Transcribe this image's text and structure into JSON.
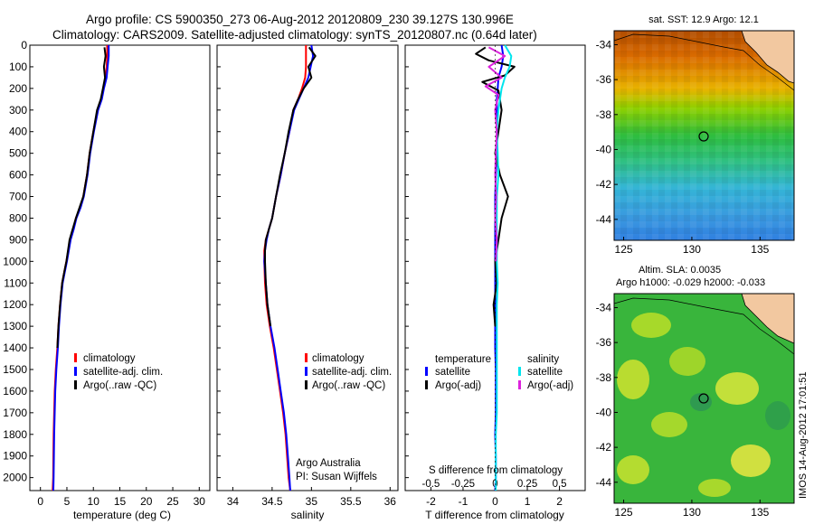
{
  "header": {
    "line1": "Argo profile: CS 5900350_273 06-Aug-2012 20120809_230 39.127S 130.996E",
    "line2": "Climatology: CARS2009. Satellite-adjusted climatology: synTS_20120807.nc (0.64d later)"
  },
  "colors": {
    "climatology": "#ff0000",
    "satellite": "#0000ff",
    "argo": "#000000",
    "sal_satellite": "#00e5ee",
    "sal_argo": "#dd22dd"
  },
  "depth_axis": {
    "ticks": [
      "0",
      "100",
      "200",
      "300",
      "400",
      "500",
      "600",
      "700",
      "800",
      "900",
      "1000",
      "1100",
      "1200",
      "1300",
      "1400",
      "1500",
      "1600",
      "1700",
      "1800",
      "1900",
      "2000"
    ],
    "range": [
      0,
      2060
    ]
  },
  "panel_temperature": {
    "xlabel": "temperature (deg C)",
    "xticks": [
      "0",
      "5",
      "10",
      "15",
      "20",
      "25",
      "30"
    ],
    "xlim": [
      -2,
      32
    ],
    "legend": [
      "climatology",
      "satellite-adj. clim.",
      "Argo(..raw -QC)"
    ]
  },
  "panel_salinity": {
    "xlabel": "salinity",
    "xticks": [
      "34",
      "34.5",
      "35",
      "35.5",
      "36"
    ],
    "xlim": [
      33.8,
      36.1
    ],
    "legend": [
      "climatology",
      "satellite-adj. clim.",
      "Argo(..raw -QC)"
    ],
    "credit1": "Argo Australia",
    "credit2": "PI: Susan Wijffels"
  },
  "panel_difference": {
    "xlabel": "T difference from climatology",
    "xlabel_top": "S difference from climatology",
    "xticks_bottom": [
      "-2",
      "-1",
      "0",
      "1",
      "2"
    ],
    "xticks_top": [
      "-0.5",
      "-0.25",
      "0",
      "0.25",
      "0.5"
    ],
    "xlim": [
      -2.8,
      2.8
    ],
    "legend_left_title": "temperature",
    "legend_left": [
      "satellite",
      "Argo(-adj)"
    ],
    "legend_right_title": "salinity",
    "legend_right": [
      "satellite",
      "Argo(-adj)"
    ]
  },
  "map_sst": {
    "title": "sat. SST: 12.9 Argo: 12.1",
    "yticks": [
      "-34",
      "-36",
      "-38",
      "-40",
      "-42",
      "-44"
    ],
    "xticks": [
      "125",
      "130",
      "135"
    ]
  },
  "map_sla": {
    "title1": "Altim. SLA: 0.0035",
    "title2": "Argo h1000: -0.029 h2000: -0.033",
    "yticks": [
      "-34",
      "-36",
      "-38",
      "-40",
      "-42",
      "-44"
    ],
    "xticks": [
      "125",
      "130",
      "135"
    ]
  },
  "stamp": "IMOS 14-Aug-2012 17:01:51",
  "chart_data": [
    {
      "type": "line",
      "title": "",
      "xlabel": "temperature (deg C)",
      "ylabel": "",
      "xlim": [
        -2,
        32
      ],
      "ylim": [
        2060,
        0
      ],
      "series": [
        {
          "name": "climatology",
          "x": [
            12.6,
            12.6,
            12.5,
            12.3,
            11.9,
            11.5,
            10.8,
            10.0,
            9.3,
            8.8,
            8.1,
            7.5,
            6.7,
            6.2,
            5.6,
            4.9,
            4.5,
            4.1,
            3.7,
            3.4,
            3.2,
            2.9,
            2.7,
            2.6,
            2.5,
            2.45,
            2.4,
            2.3
          ],
          "y": [
            0,
            50,
            100,
            150,
            200,
            250,
            300,
            400,
            500,
            600,
            700,
            750,
            800,
            850,
            900,
            1000,
            1050,
            1100,
            1200,
            1300,
            1400,
            1500,
            1600,
            1700,
            1800,
            1900,
            2000,
            2060
          ]
        },
        {
          "name": "satellite-adj. clim.",
          "x": [
            12.9,
            12.9,
            12.7,
            12.5,
            12.0,
            11.6,
            10.9,
            10.1,
            9.4,
            8.9,
            8.2,
            7.6,
            6.8,
            6.3,
            5.7,
            5.0,
            4.6,
            4.2,
            3.8,
            3.5,
            3.3,
            3.0,
            2.8,
            2.7,
            2.6,
            2.55,
            2.5,
            2.45
          ],
          "y": [
            0,
            50,
            100,
            150,
            200,
            250,
            300,
            400,
            500,
            600,
            700,
            750,
            800,
            850,
            900,
            1000,
            1050,
            1100,
            1200,
            1300,
            1400,
            1500,
            1600,
            1700,
            1800,
            1900,
            2000,
            2060
          ]
        },
        {
          "name": "Argo(..raw -QC)",
          "x": [
            12.1,
            12.3,
            12.0,
            12.2,
            11.8,
            11.4,
            10.7,
            10.0,
            9.3,
            8.8,
            8.1,
            7.4,
            6.7,
            6.1,
            5.5,
            4.9,
            4.5,
            4.1,
            3.7,
            3.4,
            3.2
          ],
          "y": [
            10,
            50,
            100,
            150,
            200,
            250,
            300,
            400,
            500,
            600,
            700,
            750,
            800,
            850,
            900,
            1000,
            1050,
            1100,
            1200,
            1300,
            1400
          ]
        }
      ]
    },
    {
      "type": "line",
      "title": "",
      "xlabel": "salinity",
      "ylabel": "",
      "xlim": [
        33.8,
        36.1
      ],
      "ylim": [
        2060,
        0
      ],
      "series": [
        {
          "name": "climatology",
          "x": [
            34.93,
            34.93,
            34.93,
            34.92,
            34.88,
            34.83,
            34.77,
            34.72,
            34.66,
            34.61,
            34.55,
            34.5,
            34.46,
            34.42,
            34.4,
            34.4,
            34.41,
            34.43,
            34.47,
            34.52,
            34.56,
            34.6,
            34.64,
            34.67,
            34.69,
            34.71,
            34.73
          ],
          "y": [
            0,
            50,
            100,
            150,
            200,
            250,
            300,
            400,
            500,
            600,
            700,
            800,
            850,
            900,
            950,
            1000,
            1100,
            1200,
            1300,
            1400,
            1500,
            1600,
            1700,
            1800,
            1900,
            2000,
            2060
          ]
        },
        {
          "name": "satellite-adj. clim.",
          "x": [
            35.0,
            35.02,
            34.99,
            34.96,
            34.9,
            34.84,
            34.78,
            34.72,
            34.66,
            34.61,
            34.55,
            34.5,
            34.46,
            34.43,
            34.41,
            34.4,
            34.42,
            34.44,
            34.48,
            34.53,
            34.57,
            34.61,
            34.65,
            34.68,
            34.7,
            34.72,
            34.73
          ],
          "y": [
            0,
            50,
            100,
            150,
            200,
            250,
            300,
            400,
            500,
            600,
            700,
            800,
            850,
            900,
            950,
            1000,
            1100,
            1200,
            1300,
            1400,
            1500,
            1600,
            1700,
            1800,
            1900,
            2000,
            2060
          ]
        },
        {
          "name": "Argo(..raw -QC)",
          "x": [
            34.97,
            35.05,
            34.96,
            35.0,
            34.9,
            34.83,
            34.77,
            34.71,
            34.66,
            34.6,
            34.55,
            34.5,
            34.46,
            34.42,
            34.41,
            34.41,
            34.42,
            34.44,
            34.48
          ],
          "y": [
            10,
            50,
            100,
            150,
            200,
            250,
            300,
            400,
            500,
            600,
            700,
            800,
            850,
            900,
            950,
            1000,
            1100,
            1200,
            1300
          ]
        }
      ]
    },
    {
      "type": "line",
      "title": "",
      "xlabel": "T difference from climatology",
      "ylabel": "",
      "xlim": [
        -2.8,
        2.8
      ],
      "ylim": [
        2060,
        0
      ],
      "series": [
        {
          "name": "temperature satellite",
          "x": [
            0.2,
            0.25,
            0.2,
            0.1,
            0.08,
            0.05,
            0.05,
            0.05,
            0.05,
            0.02,
            0.0,
            0.0,
            0.0,
            0.0,
            0.0,
            0.0,
            0.0,
            0.0,
            0.02,
            0.02,
            0.02,
            0.0,
            0.02,
            0.02,
            0.0
          ],
          "y": [
            0,
            50,
            100,
            150,
            200,
            250,
            300,
            400,
            500,
            600,
            700,
            800,
            900,
            1000,
            1100,
            1200,
            1300,
            1400,
            1500,
            1600,
            1700,
            1800,
            1900,
            2000,
            2060
          ]
        },
        {
          "name": "temperature Argo(-adj)",
          "x": [
            -0.3,
            -0.6,
            -0.2,
            0.6,
            0.3,
            -0.4,
            0.1,
            0.2,
            0.1,
            0.0,
            0.15,
            0.4,
            0.2,
            0.1,
            0.0,
            0.05,
            -0.05,
            0.0
          ],
          "y": [
            10,
            40,
            70,
            100,
            140,
            170,
            210,
            300,
            400,
            500,
            600,
            700,
            800,
            900,
            1000,
            1100,
            1200,
            1300
          ]
        },
        {
          "name": "salinity satellite",
          "x": [
            0.3,
            0.5,
            0.45,
            0.3,
            0.2,
            0.15,
            0.1,
            0.05,
            0.08,
            0.1,
            0.05,
            0.05,
            0.05,
            0.05,
            0.08,
            0.05,
            0.05,
            0.05,
            0.05,
            0.05,
            0.05,
            0.02,
            0.02,
            0.02,
            0.02
          ],
          "y": [
            0,
            50,
            100,
            150,
            200,
            250,
            300,
            400,
            500,
            600,
            700,
            800,
            900,
            1000,
            1100,
            1200,
            1300,
            1400,
            1500,
            1600,
            1700,
            1800,
            1900,
            2000,
            2060
          ]
        },
        {
          "name": "salinity Argo(-adj)",
          "x": [
            -0.2,
            0.3,
            -0.2,
            0.2,
            -0.3,
            0.1,
            0.0,
            0.05,
            0.02,
            0.0,
            0.03,
            0.0,
            0.05,
            0.02
          ],
          "y": [
            10,
            50,
            100,
            150,
            190,
            230,
            300,
            400,
            500,
            600,
            700,
            800,
            900,
            1000
          ]
        }
      ]
    }
  ]
}
